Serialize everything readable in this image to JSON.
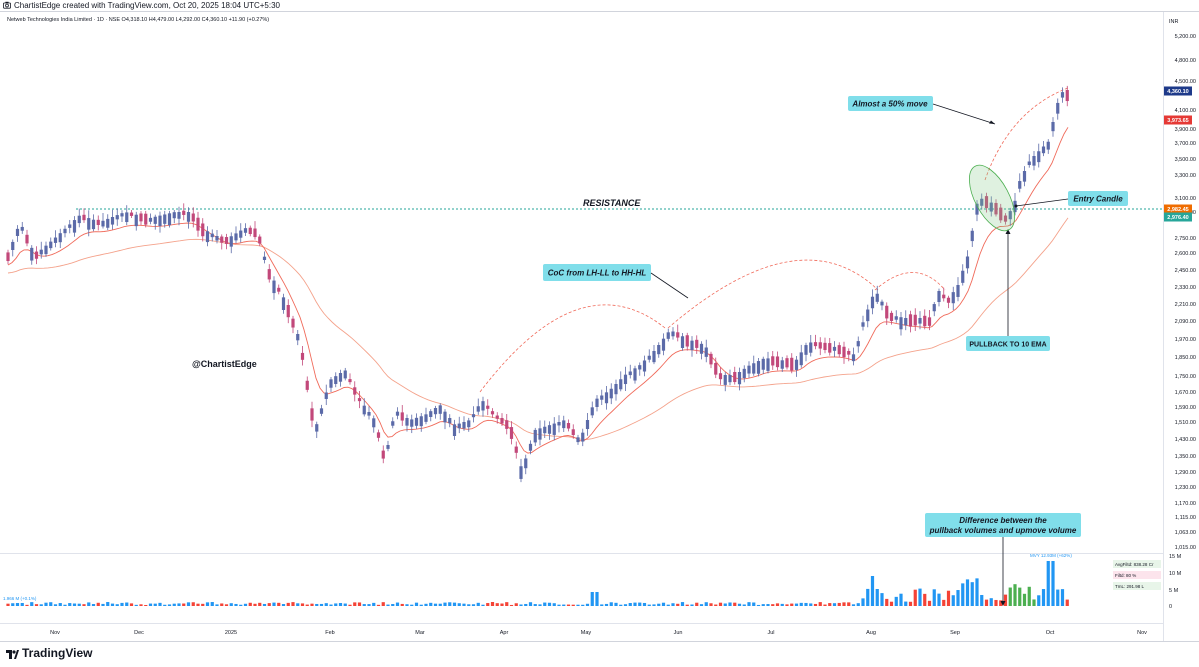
{
  "header": {
    "created_by": "ChartistEdge created with TradingView.com, Oct 20, 2025 18:04 UTC+5:30",
    "symbol_line": "Netweb Technologies India Limited · 1D · NSE  O4,318.10  H4,479.00  L4,292.00  C4,360.10  +11.90 (+0.27%)"
  },
  "footer": {
    "brand": "TradingView"
  },
  "colors": {
    "up": "#5b6aa8",
    "down": "#c2487a",
    "ema10": "#f06a5a",
    "ema50": "#f4a28b",
    "resistance": "#26a69a",
    "label_bg": "#80deea",
    "vol_up": "#2196f3",
    "vol_down": "#f44336",
    "vol_green": "#4caf50"
  },
  "chart_data": {
    "type": "candlestick",
    "title": "Netweb Technologies India Limited · 1D · NSE",
    "currency": "INR",
    "y_ticks": [
      "5,200.00",
      "4,800.00",
      "4,500.00",
      "4,100.00",
      "3,900.00",
      "3,700.00",
      "3,500.00",
      "3,300.00",
      "3,100.00",
      "2,950.00",
      "2,750.00",
      "2,600.00",
      "2,450.00",
      "2,330.00",
      "2,210.00",
      "2,090.00",
      "1,970.00",
      "1,850.00",
      "1,750.00",
      "1,670.00",
      "1,590.00",
      "1,510.00",
      "1,430.00",
      "1,350.00",
      "1,290.00",
      "1,230.00",
      "1,170.00",
      "1,115.00",
      "1,063.00",
      "1,015.00"
    ],
    "x_ticks": [
      "Nov",
      "Dec",
      "2025",
      "Feb",
      "Mar",
      "Apr",
      "May",
      "Jun",
      "Jul",
      "Aug",
      "Sep",
      "Oct",
      "Nov"
    ],
    "price_labels": [
      {
        "text": "4,360.10",
        "kind": "last",
        "value": 4360.1
      },
      {
        "text": "3,973.65",
        "kind": "ema10",
        "value": 3973.65
      },
      {
        "text": "2,982.45",
        "kind": "resistance",
        "value": 2982.45
      },
      {
        "text": "2,976.40",
        "kind": "ema50",
        "value": 2976.4
      }
    ],
    "resistance_level": 2982.45,
    "annotations": {
      "resistance": "RESISTANCE",
      "watermark": "@ChartistEdge",
      "coc": "CoC from LH-LL to HH-HL",
      "fifty": "Almost a 50% move",
      "entry": "Entry Candle",
      "pullback": "PULLBACK TO 10 EMA",
      "volume_note_1": "Difference between the",
      "volume_note_2": "pullback volumes and upmove volume"
    },
    "volume_panel": {
      "y_ticks": [
        "15 M",
        "10 M",
        "5 M",
        "0"
      ],
      "legend": [
        "AvgFiltd: 838.28 Cr",
        "Filtd: 80 %",
        "TmL: 291.98 L"
      ],
      "left_label": "1.966 M (+0.1%)",
      "top_label": "MVY 12.93M (+62%)"
    }
  }
}
